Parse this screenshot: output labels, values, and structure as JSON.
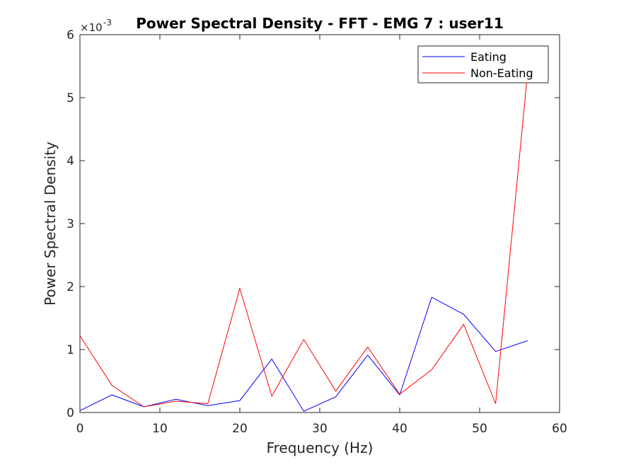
{
  "chart_data": {
    "type": "line",
    "title": "Power Spectral Density - FFT - EMG 7 :  user11",
    "xlabel": "Frequency (Hz)",
    "ylabel": "Power Spectral Density",
    "xlim": [
      0,
      60
    ],
    "ylim": [
      0,
      6
    ],
    "y_exponent_label": "×10",
    "y_exponent_power": "-3",
    "x_ticks": [
      0,
      10,
      20,
      30,
      40,
      50,
      60
    ],
    "y_ticks": [
      0,
      1,
      2,
      3,
      4,
      5,
      6
    ],
    "grid": false,
    "legend_position": "top-right",
    "x": [
      0,
      4,
      8,
      12,
      16,
      20,
      24,
      28,
      32,
      36,
      40,
      44,
      48,
      52,
      56
    ],
    "series": [
      {
        "name": "Eating",
        "color": "#0000ff",
        "values": [
          0.03,
          0.28,
          0.09,
          0.21,
          0.11,
          0.19,
          0.85,
          0.02,
          0.25,
          0.91,
          0.28,
          1.83,
          1.56,
          0.97,
          1.14
        ]
      },
      {
        "name": "Non-Eating",
        "color": "#ff0000",
        "values": [
          1.22,
          0.43,
          0.09,
          0.18,
          0.14,
          1.97,
          0.26,
          1.16,
          0.34,
          1.04,
          0.29,
          0.68,
          1.4,
          0.14,
          5.4
        ]
      }
    ]
  }
}
